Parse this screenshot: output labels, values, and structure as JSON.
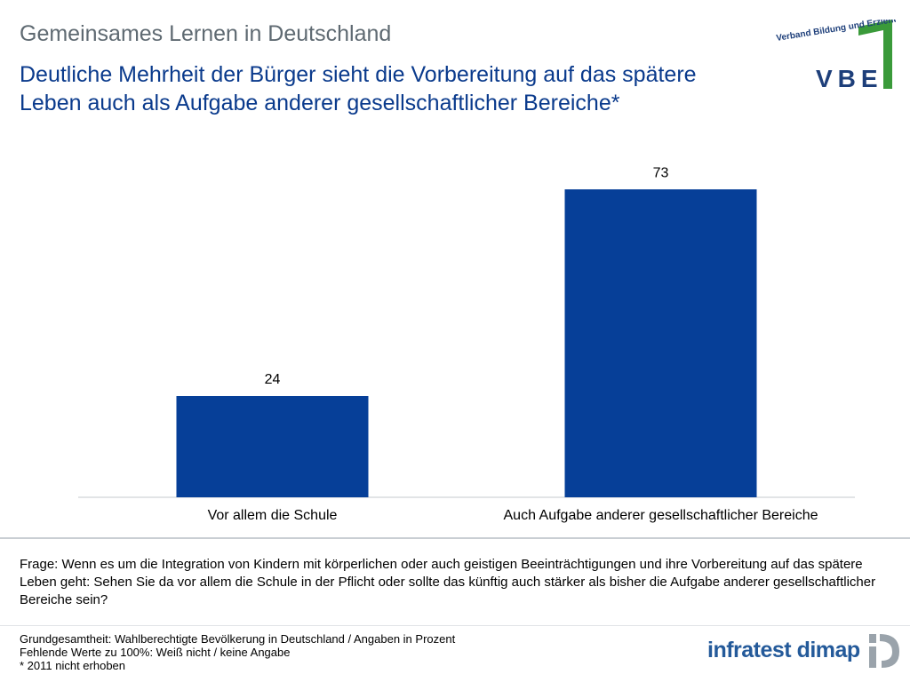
{
  "header": {
    "supertitle": "Gemeinsames Lernen in Deutschland",
    "headline": "Deutliche Mehrheit der Bürger sieht die Vorbereitung auf das spätere Leben auch als Aufgabe anderer gesellschaftlicher Bereiche*"
  },
  "logos": {
    "vbe_tagline": "Verband Bildung und Erziehung",
    "vbe_wordmark": "VBE",
    "infratest": "infratest dimap"
  },
  "chart_data": {
    "type": "bar",
    "categories": [
      "Vor allem die Schule",
      "Auch Aufgabe anderer gesellschaftlicher Bereiche"
    ],
    "values": [
      24,
      73
    ],
    "data_labels": [
      "24",
      "73"
    ],
    "ylim": [
      0,
      80
    ],
    "grid": false,
    "bar_color": "#063f98"
  },
  "question": "Frage: Wenn es um die Integration von Kindern mit körperlichen oder auch geistigen Beeinträchtigungen und ihre Vorbereitung auf das spätere Leben geht: Sehen Sie da vor allem die Schule in der Pflicht oder sollte das künftig auch stärker als bisher die Aufgabe anderer gesellschaftlicher Bereiche sein?",
  "footer": {
    "line1": "Grundgesamtheit: Wahlberechtigte Bevölkerung in Deutschland / Angaben in Prozent",
    "line2": "Fehlende Werte zu 100%: Weiß nicht / keine Angabe",
    "line3": "* 2011 nicht erhoben"
  },
  "colors": {
    "headline": "#0a3a8c",
    "supertitle": "#5f6a72",
    "vbe_green": "#3a9a3a",
    "vbe_text": "#1e3f7a",
    "infratest_blue": "#245a9a"
  }
}
